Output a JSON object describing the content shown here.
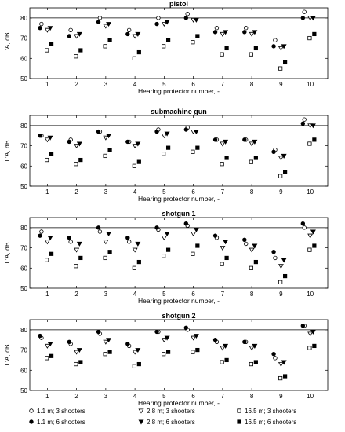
{
  "chart_data": [
    {
      "type": "scatter",
      "title": "pistol",
      "xlabel": "Hearing protector number, -",
      "ylabel": "L′A, dB",
      "xlim": [
        0.4,
        10.6
      ],
      "ylim": [
        50,
        85
      ],
      "yticks": [
        50,
        60,
        70,
        80
      ],
      "reference_line": 80,
      "categories": [
        "1",
        "2",
        "3",
        "4",
        "5",
        "6",
        "7",
        "8",
        "9",
        "10"
      ],
      "series": [
        {
          "name": "1.1 m; 3 shooters",
          "values": [
            77,
            74,
            80,
            74,
            80,
            82,
            75,
            75,
            69,
            83
          ]
        },
        {
          "name": "1.1 m; 6 shooters",
          "values": [
            75,
            71,
            78,
            72,
            77,
            80,
            73,
            73,
            66,
            80
          ]
        },
        {
          "name": "2.8 m; 3 shooters",
          "values": [
            74,
            71,
            76,
            71,
            77,
            79,
            72,
            72,
            65,
            80
          ]
        },
        {
          "name": "2.8 m; 6 shooters",
          "values": [
            75,
            72,
            77,
            72,
            78,
            79,
            73,
            73,
            66,
            80
          ]
        },
        {
          "name": "16.5 m; 3 shooters",
          "values": [
            64,
            61,
            66,
            60,
            66,
            68,
            62,
            62,
            55,
            70
          ]
        },
        {
          "name": "16.5 m; 6 shooters",
          "values": [
            67,
            64,
            69,
            63,
            69,
            71,
            65,
            65,
            58,
            72
          ]
        }
      ]
    },
    {
      "type": "scatter",
      "title": "submachine gun",
      "xlabel": "Hearing protector number, -",
      "ylabel": "L′A, dB",
      "xlim": [
        0.4,
        10.6
      ],
      "ylim": [
        50,
        85
      ],
      "yticks": [
        50,
        60,
        70,
        80
      ],
      "reference_line": 80,
      "categories": [
        "1",
        "2",
        "3",
        "4",
        "5",
        "6",
        "7",
        "8",
        "9",
        "10"
      ],
      "series": [
        {
          "name": "1.1 m; 3 shooters",
          "values": [
            75,
            73,
            77,
            72,
            78,
            79,
            73,
            73,
            68,
            83
          ]
        },
        {
          "name": "1.1 m; 6 shooters",
          "values": [
            75,
            72,
            77,
            72,
            77,
            78,
            73,
            73,
            67,
            81
          ]
        },
        {
          "name": "2.8 m; 3 shooters",
          "values": [
            73,
            70,
            74,
            70,
            75,
            77,
            71,
            71,
            64,
            80
          ]
        },
        {
          "name": "2.8 m; 6 shooters",
          "values": [
            74,
            71,
            75,
            71,
            76,
            77,
            72,
            72,
            65,
            80
          ]
        },
        {
          "name": "16.5 m; 3 shooters",
          "values": [
            63,
            61,
            65,
            60,
            66,
            67,
            61,
            62,
            55,
            71
          ]
        },
        {
          "name": "16.5 m; 6 shooters",
          "values": [
            66,
            63,
            68,
            62,
            69,
            69,
            64,
            64,
            57,
            73
          ]
        }
      ]
    },
    {
      "type": "scatter",
      "title": "shotgun 1",
      "xlabel": "Hearing protector number, -",
      "ylabel": "L′A, dB",
      "xlim": [
        0.4,
        10.6
      ],
      "ylim": [
        50,
        85
      ],
      "yticks": [
        50,
        60,
        70,
        80
      ],
      "reference_line": 80,
      "categories": [
        "1",
        "2",
        "3",
        "4",
        "5",
        "6",
        "7",
        "8",
        "9",
        "10"
      ],
      "series": [
        {
          "name": "1.1 m; 3 shooters",
          "values": [
            78,
            73,
            78,
            73,
            79,
            81,
            75,
            72,
            65,
            80
          ]
        },
        {
          "name": "1.1 m; 6 shooters",
          "values": [
            76,
            75,
            80,
            75,
            80,
            82,
            76,
            74,
            68,
            82
          ]
        },
        {
          "name": "2.8 m; 3 shooters",
          "values": [
            73,
            69,
            73,
            69,
            75,
            77,
            70,
            69,
            61,
            76
          ]
        },
        {
          "name": "2.8 m; 6 shooters",
          "values": [
            75,
            72,
            77,
            72,
            77,
            79,
            73,
            71,
            64,
            78
          ]
        },
        {
          "name": "16.5 m; 3 shooters",
          "values": [
            64,
            61,
            65,
            60,
            66,
            67,
            62,
            60,
            53,
            69
          ]
        },
        {
          "name": "16.5 m; 6 shooters",
          "values": [
            67,
            65,
            68,
            63,
            69,
            71,
            65,
            63,
            56,
            71
          ]
        }
      ]
    },
    {
      "type": "scatter",
      "title": "shotgun 2",
      "xlabel": "Hearing protector number, -",
      "ylabel": "L′A, dB",
      "xlim": [
        0.4,
        10.6
      ],
      "ylim": [
        50,
        85
      ],
      "yticks": [
        50,
        60,
        70,
        80
      ],
      "reference_line": 80,
      "categories": [
        "1",
        "2",
        "3",
        "4",
        "5",
        "6",
        "7",
        "8",
        "9",
        "10"
      ],
      "series": [
        {
          "name": "1.1 m; 3 shooters",
          "values": [
            76,
            73,
            78,
            72,
            79,
            80,
            74,
            74,
            66,
            82
          ]
        },
        {
          "name": "1.1 m; 6 shooters",
          "values": [
            77,
            74,
            79,
            73,
            79,
            81,
            75,
            74,
            68,
            82
          ]
        },
        {
          "name": "2.8 m; 3 shooters",
          "values": [
            72,
            69,
            74,
            69,
            75,
            76,
            71,
            71,
            63,
            78
          ]
        },
        {
          "name": "2.8 m; 6 shooters",
          "values": [
            73,
            70,
            75,
            70,
            76,
            77,
            72,
            72,
            64,
            79
          ]
        },
        {
          "name": "16.5 m; 3 shooters",
          "values": [
            66,
            63,
            68,
            62,
            68,
            69,
            64,
            63,
            56,
            71
          ]
        },
        {
          "name": "16.5 m; 6 shooters",
          "values": [
            67,
            64,
            69,
            63,
            69,
            70,
            65,
            64,
            57,
            72
          ]
        }
      ]
    }
  ],
  "legend": {
    "entries": [
      {
        "label": "1.1 m; 3 shooters",
        "marker": "circle-open"
      },
      {
        "label": "1.1 m; 6 shooters",
        "marker": "circle-filled"
      },
      {
        "label": "2.8 m; 3 shooters",
        "marker": "triangle-open"
      },
      {
        "label": "2.8 m; 6 shooters",
        "marker": "triangle-filled"
      },
      {
        "label": "16.5 m; 3 shooters",
        "marker": "square-open"
      },
      {
        "label": "16.5 m; 6 shooters",
        "marker": "square-filled"
      }
    ],
    "placement": "bottom"
  },
  "colors": {
    "marker": "#000000",
    "axis": "#000000",
    "grid": "#dddddd",
    "background": "#ffffff"
  }
}
